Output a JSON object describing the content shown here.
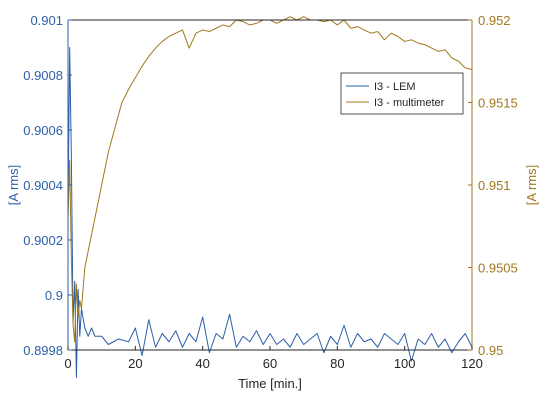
{
  "chart_data": {
    "type": "line",
    "xlabel": "Time [min.]",
    "ylabel_left": "[A rms]",
    "ylabel_right": "[A rms]",
    "xlim": [
      0,
      120
    ],
    "ylim_left": [
      0.8998,
      0.901
    ],
    "ylim_right": [
      0.95,
      0.952
    ],
    "x_ticks": [
      "0",
      "20",
      "40",
      "60",
      "80",
      "100",
      "120"
    ],
    "y_left_ticks": [
      "0.8998",
      "0.9",
      "0.9002",
      "0.9004",
      "0.9006",
      "0.9008",
      "0.901"
    ],
    "y_right_ticks": [
      "0.95",
      "0.9505",
      "0.951",
      "0.9515",
      "0.952"
    ],
    "legend": {
      "location": "top-right",
      "entries": [
        "I3 - LEM",
        "I3 - multimeter"
      ]
    },
    "grid": false,
    "series": [
      {
        "name": "I3 - LEM",
        "axis": "left",
        "color": "#2E5FA8",
        "x": [
          0,
          0.5,
          1,
          1.5,
          2,
          2.5,
          3,
          3.5,
          4,
          5,
          6,
          7,
          8,
          10,
          12,
          15,
          18,
          20,
          22,
          24,
          26,
          28,
          30,
          32,
          34,
          36,
          38,
          40,
          42,
          44,
          46,
          48,
          50,
          52,
          54,
          56,
          58,
          60,
          62,
          64,
          66,
          68,
          70,
          72,
          74,
          76,
          78,
          80,
          82,
          84,
          86,
          88,
          90,
          92,
          94,
          96,
          98,
          100,
          102,
          104,
          106,
          108,
          110,
          112,
          114,
          116,
          118,
          120
        ],
        "y": [
          0.9003,
          0.9009,
          0.9005,
          0.8999,
          0.90005,
          0.8997,
          0.90002,
          0.89985,
          0.89995,
          0.89988,
          0.89985,
          0.89988,
          0.89985,
          0.89985,
          0.89982,
          0.89984,
          0.89983,
          0.89988,
          0.89978,
          0.89991,
          0.89981,
          0.89986,
          0.89983,
          0.89987,
          0.89981,
          0.89986,
          0.89983,
          0.89992,
          0.89979,
          0.89986,
          0.89984,
          0.89993,
          0.89981,
          0.89985,
          0.89983,
          0.89987,
          0.89982,
          0.89986,
          0.89982,
          0.89984,
          0.89981,
          0.89986,
          0.89982,
          0.89984,
          0.89986,
          0.89979,
          0.89985,
          0.89982,
          0.89989,
          0.89981,
          0.89986,
          0.89983,
          0.89984,
          0.89981,
          0.89986,
          0.89984,
          0.89982,
          0.89986,
          0.89976,
          0.89984,
          0.89982,
          0.89986,
          0.89981,
          0.89984,
          0.89979,
          0.89983,
          0.89986,
          0.89981
        ]
      },
      {
        "name": "I3 - multimeter",
        "axis": "right",
        "color": "#A0781E",
        "x": [
          0,
          0.5,
          1,
          1.5,
          2,
          2.5,
          3,
          3.5,
          4,
          5,
          6,
          8,
          10,
          12,
          14,
          16,
          18,
          20,
          22,
          24,
          26,
          28,
          30,
          32,
          34,
          36,
          38,
          40,
          42,
          44,
          46,
          48,
          50,
          52,
          54,
          56,
          58,
          60,
          62,
          64,
          66,
          68,
          70,
          72,
          74,
          76,
          78,
          80,
          82,
          84,
          86,
          88,
          90,
          92,
          94,
          96,
          98,
          100,
          102,
          104,
          106,
          108,
          110,
          112,
          114,
          116,
          118,
          120
        ],
        "y": [
          0.9508,
          0.95115,
          0.95055,
          0.95015,
          0.95005,
          0.9504,
          0.9502,
          0.9503,
          0.95025,
          0.9505,
          0.9506,
          0.9508,
          0.951,
          0.9512,
          0.95135,
          0.9515,
          0.95158,
          0.95165,
          0.95172,
          0.95178,
          0.95183,
          0.95187,
          0.9519,
          0.95192,
          0.95194,
          0.95183,
          0.95192,
          0.95194,
          0.95193,
          0.95195,
          0.95197,
          0.95196,
          0.952,
          0.95199,
          0.95197,
          0.95198,
          0.952,
          0.952,
          0.95198,
          0.952,
          0.95202,
          0.952,
          0.95202,
          0.952,
          0.952,
          0.95199,
          0.952,
          0.95197,
          0.952,
          0.95195,
          0.95196,
          0.95194,
          0.95192,
          0.95193,
          0.95188,
          0.95192,
          0.9519,
          0.95187,
          0.95188,
          0.95186,
          0.95185,
          0.95183,
          0.95181,
          0.95182,
          0.95177,
          0.95175,
          0.95171,
          0.9517
        ]
      }
    ]
  }
}
